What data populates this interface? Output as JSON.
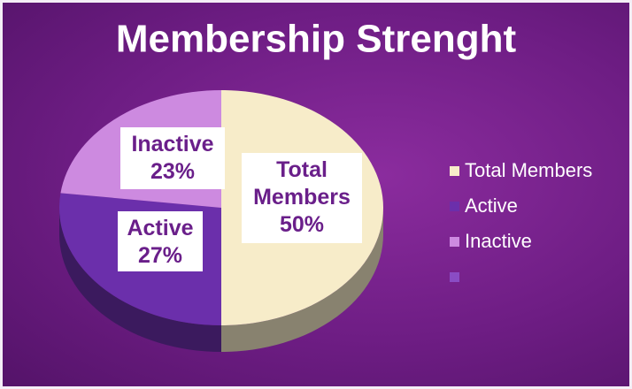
{
  "chart_data": {
    "type": "pie",
    "title": "Membership Strenght",
    "categories": [
      "Total Members",
      "Active",
      "Inactive",
      null
    ],
    "values": [
      50,
      27,
      23,
      0
    ],
    "value_labels": [
      "50%",
      "27%",
      "23%",
      null
    ],
    "colors": [
      "#f7ecc9",
      "#6b2fab",
      "#cd8ae0",
      "#8a4cc4"
    ],
    "legend": "right"
  }
}
